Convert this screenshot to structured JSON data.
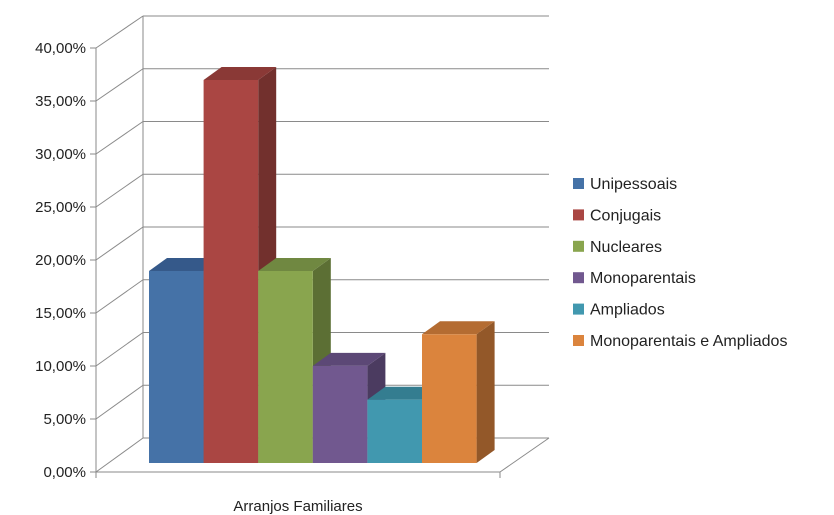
{
  "chart_data": {
    "type": "bar",
    "title": "",
    "xlabel": "",
    "ylabel": "",
    "categories": [
      "Arranjos Familiares"
    ],
    "series": [
      {
        "name": "Unipessoais",
        "values": [
          18.2
        ],
        "color": "#4572A7",
        "side": "#2E4D73",
        "top": "#35598A"
      },
      {
        "name": "Conjugais",
        "values": [
          36.3
        ],
        "color": "#AA4643",
        "side": "#72302D",
        "top": "#8A3936"
      },
      {
        "name": "Nucleares",
        "values": [
          18.2
        ],
        "color": "#89A54E",
        "side": "#5C6F34",
        "top": "#708841"
      },
      {
        "name": "Monoparentais",
        "values": [
          9.2
        ],
        "color": "#71588F",
        "side": "#4B3B60",
        "top": "#5C4876"
      },
      {
        "name": "Ampliados",
        "values": [
          6.0
        ],
        "color": "#4198AF",
        "side": "#2B6676",
        "top": "#347D90"
      },
      {
        "name": "Monoparentais e Ampliados",
        "values": [
          12.2
        ],
        "color": "#DB843D",
        "side": "#935829",
        "top": "#B46C32"
      }
    ],
    "y_ticks": [
      "0,00%",
      "5,00%",
      "10,00%",
      "15,00%",
      "20,00%",
      "25,00%",
      "30,00%",
      "35,00%",
      "40,00%"
    ],
    "ylim": [
      0,
      40
    ],
    "legend": "right",
    "grid": true
  }
}
